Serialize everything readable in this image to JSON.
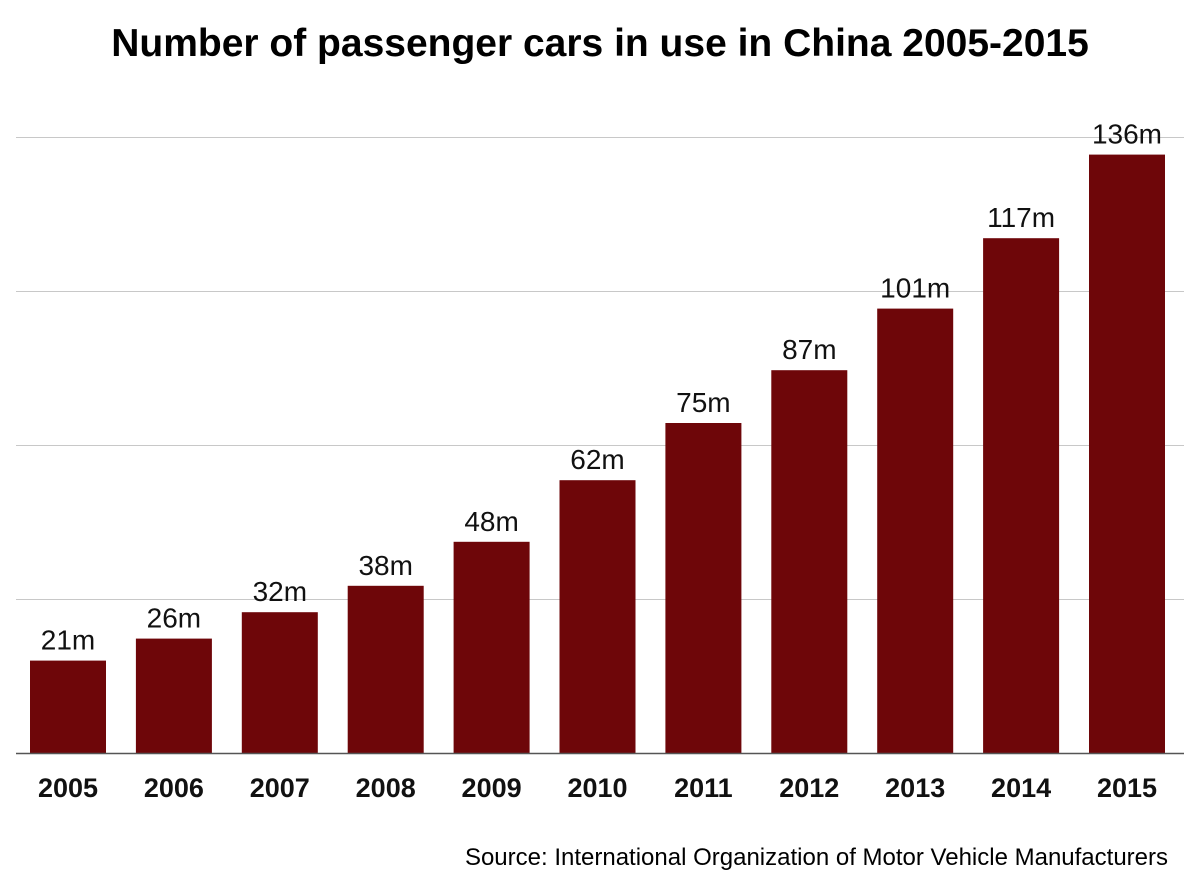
{
  "chart_data": {
    "type": "bar",
    "title": "Number of passenger cars in use in China 2005-2015",
    "categories": [
      "2005",
      "2006",
      "2007",
      "2008",
      "2009",
      "2010",
      "2011",
      "2012",
      "2013",
      "2014",
      "2015"
    ],
    "values": [
      21,
      26,
      32,
      38,
      48,
      62,
      75,
      87,
      101,
      117,
      136
    ],
    "data_labels": [
      "21m",
      "26m",
      "32m",
      "38m",
      "48m",
      "62m",
      "75m",
      "87m",
      "101m",
      "117m",
      "136m"
    ],
    "xlabel": "",
    "ylabel": "",
    "unit": "million",
    "ylim": [
      0,
      140
    ],
    "gridlines": [
      35,
      70,
      105,
      140
    ],
    "grid": true,
    "legend": "none",
    "bar_color": "#6e0609",
    "grid_color": "#c8c8c8",
    "axis_color": "#555555"
  },
  "source": "Source: International Organization of Motor Vehicle Manufacturers"
}
